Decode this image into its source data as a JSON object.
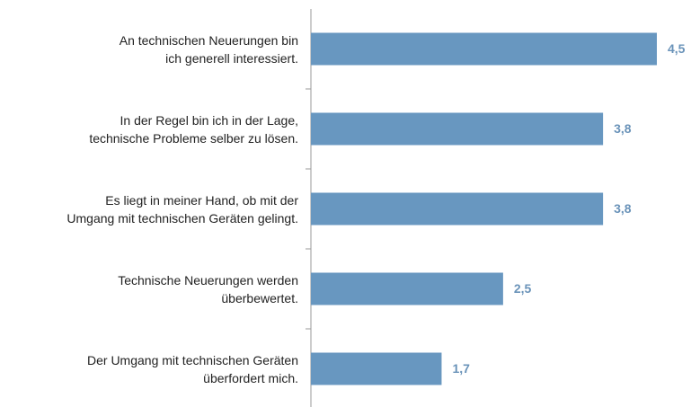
{
  "chart_data": {
    "type": "bar",
    "orientation": "horizontal",
    "categories": [
      "An technischen Neuerungen bin\nich generell interessiert.",
      "In der Regel bin ich in der Lage,\ntechnische Probleme selber zu lösen.",
      "Es liegt in meiner Hand, ob mit der\nUmgang mit technischen Geräten gelingt.",
      "Technische Neuerungen werden\nüberbewertet.",
      "Der Umgang mit technischen Geräten\nüberfordert mich."
    ],
    "values": [
      4.5,
      3.8,
      3.8,
      2.5,
      1.7
    ],
    "value_labels": [
      "4,5",
      "3,8",
      "3,8",
      "2,5",
      "1,7"
    ],
    "color": "#6897c0"
  }
}
